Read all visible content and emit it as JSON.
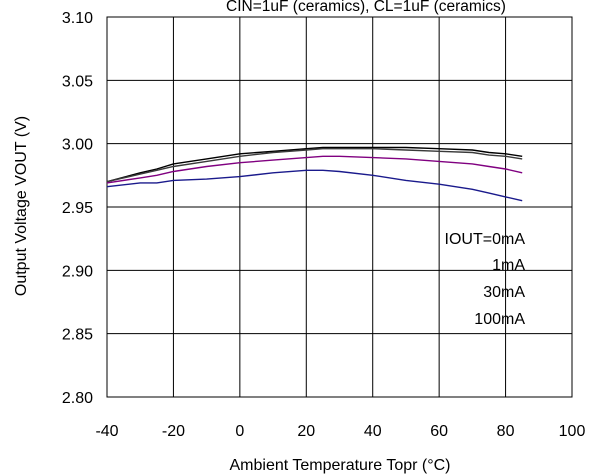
{
  "chart_data": {
    "type": "line",
    "title": "",
    "annotation": "CIN=1uF (ceramics), CL=1uF (ceramics)",
    "xlabel": "Ambient Temperature Topr (°C)",
    "ylabel": "Output Voltage VOUT (V)",
    "xlim": [
      -40,
      100
    ],
    "ylim": [
      2.8,
      3.1
    ],
    "x_ticks": [
      "-40",
      "-20",
      "0",
      "20",
      "40",
      "60",
      "80",
      "100"
    ],
    "y_ticks": [
      "3.10",
      "3.05",
      "3.00",
      "2.95",
      "2.90",
      "2.85",
      "2.80"
    ],
    "grid": true,
    "legend": {
      "placement": "right",
      "entries": [
        "IOUT=0mA",
        "1mA",
        "30mA",
        "100mA"
      ]
    },
    "series": [
      {
        "name": "IOUT=0mA",
        "color": "#000000",
        "x": [
          -40,
          -30,
          -25,
          -20,
          -10,
          0,
          10,
          20,
          25,
          30,
          40,
          50,
          60,
          70,
          75,
          80,
          85
        ],
        "y": [
          2.97,
          2.977,
          2.98,
          2.984,
          2.988,
          2.992,
          2.994,
          2.996,
          2.997,
          2.997,
          2.997,
          2.997,
          2.996,
          2.995,
          2.993,
          2.992,
          2.99
        ]
      },
      {
        "name": "1mA",
        "color": "#3a3a3a",
        "x": [
          -40,
          -30,
          -25,
          -20,
          -10,
          0,
          10,
          20,
          25,
          30,
          40,
          50,
          60,
          70,
          75,
          80,
          85
        ],
        "y": [
          2.97,
          2.976,
          2.979,
          2.982,
          2.986,
          2.99,
          2.993,
          2.995,
          2.996,
          2.996,
          2.996,
          2.995,
          2.994,
          2.993,
          2.991,
          2.99,
          2.988
        ]
      },
      {
        "name": "30mA",
        "color": "#800080",
        "x": [
          -40,
          -30,
          -25,
          -20,
          -10,
          0,
          10,
          20,
          25,
          30,
          40,
          50,
          60,
          70,
          75,
          80,
          85
        ],
        "y": [
          2.969,
          2.973,
          2.975,
          2.978,
          2.982,
          2.985,
          2.987,
          2.989,
          2.99,
          2.99,
          2.989,
          2.988,
          2.986,
          2.984,
          2.982,
          2.98,
          2.977
        ]
      },
      {
        "name": "100mA",
        "color": "#1a1a8c",
        "x": [
          -40,
          -30,
          -25,
          -20,
          -10,
          0,
          10,
          20,
          25,
          30,
          40,
          50,
          60,
          70,
          75,
          80,
          85
        ],
        "y": [
          2.966,
          2.969,
          2.969,
          2.971,
          2.972,
          2.974,
          2.977,
          2.979,
          2.979,
          2.978,
          2.975,
          2.971,
          2.968,
          2.964,
          2.961,
          2.958,
          2.955
        ]
      }
    ]
  }
}
